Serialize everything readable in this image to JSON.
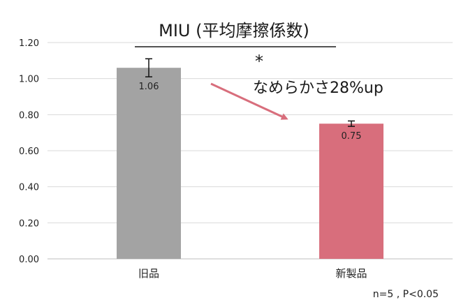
{
  "chart_data": {
    "type": "bar",
    "title": "MIU (平均摩擦係数)",
    "categories": [
      "旧品",
      "新製品"
    ],
    "values": [
      1.06,
      0.75
    ],
    "data_labels": [
      "1.06",
      "0.75"
    ],
    "error": [
      0.05,
      0.015
    ],
    "colors": [
      "#a3a3a3",
      "#d86e7c"
    ],
    "ylim": [
      0,
      1.2
    ],
    "y_ticks": [
      0,
      0.2,
      0.4,
      0.6,
      0.8,
      1.0,
      1.2
    ],
    "y_tick_labels": [
      "0.00",
      "0.20",
      "0.40",
      "0.60",
      "0.80",
      "1.00",
      "1.20"
    ],
    "grid": true,
    "annotation": {
      "star": "*",
      "text": "なめらかさ28%up",
      "arrow_color": "#d86e7c"
    },
    "note": "n=5 , P<0.05"
  }
}
